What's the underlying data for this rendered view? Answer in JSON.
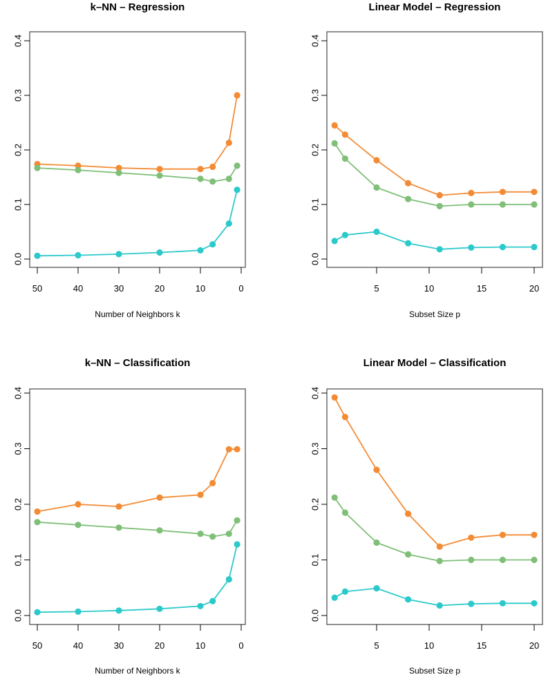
{
  "colors": {
    "orange": "#F38B35",
    "green": "#7FBF78",
    "cyan": "#2CC9CB",
    "frame": "#555555"
  },
  "chart_data": [
    {
      "type": "line",
      "title": "k–NN – Regression",
      "xlabel": "Number of Neighbors k",
      "ylabel": "",
      "x": [
        50,
        40,
        30,
        20,
        10,
        7,
        3,
        1
      ],
      "xlim": [
        50,
        0
      ],
      "ylim": [
        0,
        0.4
      ],
      "xticks": [
        50,
        40,
        30,
        20,
        10,
        0
      ],
      "xtick_labels": [
        "50",
        "40",
        "30",
        "20",
        "10",
        "0"
      ],
      "yticks": [
        0,
        0.1,
        0.2,
        0.3,
        0.4
      ],
      "ytick_labels": [
        "0.0",
        "0.1",
        "0.2",
        "0.3",
        "0.4"
      ],
      "grid": false,
      "series": [
        {
          "name": "orange",
          "color": "#F38B35",
          "values": [
            0.174,
            0.171,
            0.167,
            0.165,
            0.165,
            0.169,
            0.213,
            0.3
          ]
        },
        {
          "name": "green",
          "color": "#7FBF78",
          "values": [
            0.167,
            0.163,
            0.158,
            0.153,
            0.147,
            0.142,
            0.147,
            0.171
          ]
        },
        {
          "name": "cyan",
          "color": "#2CC9CB",
          "values": [
            0.006,
            0.007,
            0.009,
            0.012,
            0.016,
            0.027,
            0.065,
            0.127
          ]
        }
      ]
    },
    {
      "type": "line",
      "title": "Linear Model – Regression",
      "xlabel": "Subset Size p",
      "ylabel": "",
      "x": [
        1,
        2,
        5,
        8,
        11,
        14,
        17,
        20
      ],
      "xlim": [
        0.3,
        20.7
      ],
      "ylim": [
        0,
        0.4
      ],
      "xticks": [
        5,
        10,
        15,
        20
      ],
      "xtick_labels": [
        "5",
        "10",
        "15",
        "20"
      ],
      "yticks": [
        0,
        0.1,
        0.2,
        0.3,
        0.4
      ],
      "ytick_labels": [
        "0.0",
        "0.1",
        "0.2",
        "0.3",
        "0.4"
      ],
      "grid": false,
      "series": [
        {
          "name": "orange",
          "color": "#F38B35",
          "values": [
            0.245,
            0.228,
            0.181,
            0.139,
            0.117,
            0.121,
            0.123,
            0.123
          ]
        },
        {
          "name": "green",
          "color": "#7FBF78",
          "values": [
            0.212,
            0.184,
            0.131,
            0.11,
            0.097,
            0.1,
            0.1,
            0.1
          ]
        },
        {
          "name": "cyan",
          "color": "#2CC9CB",
          "values": [
            0.033,
            0.044,
            0.05,
            0.029,
            0.018,
            0.021,
            0.022,
            0.022
          ]
        }
      ]
    },
    {
      "type": "line",
      "title": "k–NN – Classification",
      "xlabel": "Number of Neighbors k",
      "ylabel": "",
      "x": [
        50,
        40,
        30,
        20,
        10,
        7,
        3,
        1
      ],
      "xlim": [
        50,
        0
      ],
      "ylim": [
        0,
        0.4
      ],
      "xticks": [
        50,
        40,
        30,
        20,
        10,
        0
      ],
      "xtick_labels": [
        "50",
        "40",
        "30",
        "20",
        "10",
        "0"
      ],
      "yticks": [
        0,
        0.1,
        0.2,
        0.3,
        0.4
      ],
      "ytick_labels": [
        "0.0",
        "0.1",
        "0.2",
        "0.3",
        "0.4"
      ],
      "grid": false,
      "series": [
        {
          "name": "orange",
          "color": "#F38B35",
          "values": [
            0.187,
            0.2,
            0.196,
            0.212,
            0.217,
            0.238,
            0.299,
            0.299
          ]
        },
        {
          "name": "green",
          "color": "#7FBF78",
          "values": [
            0.168,
            0.163,
            0.158,
            0.153,
            0.147,
            0.142,
            0.147,
            0.171
          ]
        },
        {
          "name": "cyan",
          "color": "#2CC9CB",
          "values": [
            0.006,
            0.007,
            0.009,
            0.012,
            0.017,
            0.026,
            0.065,
            0.128
          ]
        }
      ]
    },
    {
      "type": "line",
      "title": "Linear Model – Classification",
      "xlabel": "Subset Size p",
      "ylabel": "",
      "x": [
        1,
        2,
        5,
        8,
        11,
        14,
        17,
        20
      ],
      "xlim": [
        0.3,
        20.7
      ],
      "ylim": [
        0,
        0.4
      ],
      "xticks": [
        5,
        10,
        15,
        20
      ],
      "xtick_labels": [
        "5",
        "10",
        "15",
        "20"
      ],
      "yticks": [
        0,
        0.1,
        0.2,
        0.3,
        0.4
      ],
      "ytick_labels": [
        "0.0",
        "0.1",
        "0.2",
        "0.3",
        "0.4"
      ],
      "grid": false,
      "series": [
        {
          "name": "orange",
          "color": "#F38B35",
          "values": [
            0.392,
            0.357,
            0.262,
            0.183,
            0.124,
            0.14,
            0.145,
            0.145
          ]
        },
        {
          "name": "green",
          "color": "#7FBF78",
          "values": [
            0.212,
            0.185,
            0.131,
            0.11,
            0.098,
            0.1,
            0.1,
            0.1
          ]
        },
        {
          "name": "cyan",
          "color": "#2CC9CB",
          "values": [
            0.032,
            0.043,
            0.049,
            0.029,
            0.018,
            0.021,
            0.022,
            0.022
          ]
        }
      ]
    }
  ]
}
